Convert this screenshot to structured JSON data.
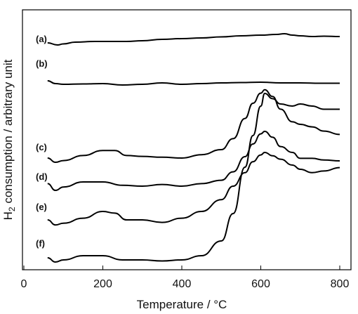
{
  "chart_data": {
    "type": "line",
    "xlabel": "Temperature / °C",
    "ylabel_main": "H",
    "ylabel_sub": "2",
    "ylabel_rest": " consumption / arbitrary unit",
    "xlim": [
      0,
      800
    ],
    "xticks": [
      {
        "value": 0,
        "label": "0"
      },
      {
        "value": 200,
        "label": "200"
      },
      {
        "value": 400,
        "label": "400"
      },
      {
        "value": 600,
        "label": "600"
      },
      {
        "value": 800,
        "label": "800"
      }
    ],
    "y_units": "arbitrary, curves vertically offset",
    "grid": false,
    "series": [
      {
        "name": "(a)",
        "x": [
          60,
          85,
          100,
          130,
          180,
          260,
          300,
          350,
          400,
          450,
          500,
          550,
          600,
          640,
          660,
          680,
          700,
          730,
          760,
          800
        ],
        "y": [
          18,
          12,
          15,
          20,
          22,
          22,
          24,
          28,
          30,
          32,
          35,
          38,
          40,
          42,
          44,
          40,
          38,
          36,
          37,
          36
        ]
      },
      {
        "name": "(b)",
        "x": [
          60,
          80,
          100,
          150,
          200,
          250,
          300,
          350,
          400,
          450,
          500,
          550,
          600,
          650,
          700,
          750,
          800
        ],
        "y": [
          20,
          12,
          10,
          11,
          12,
          8,
          10,
          14,
          10,
          12,
          14,
          15,
          16,
          14,
          14,
          13,
          13
        ]
      },
      {
        "name": "(c)",
        "x": [
          60,
          80,
          100,
          150,
          200,
          230,
          260,
          300,
          350,
          400,
          450,
          500,
          530,
          560,
          580,
          600,
          610,
          630,
          650,
          680,
          700,
          730,
          760,
          800
        ],
        "y": [
          5,
          0,
          2,
          8,
          14,
          14,
          8,
          7,
          6,
          5,
          9,
          15,
          28,
          52,
          70,
          82,
          86,
          78,
          63,
          48,
          45,
          42,
          37,
          33
        ]
      },
      {
        "name": "(d)",
        "x": [
          60,
          80,
          100,
          150,
          200,
          250,
          300,
          350,
          400,
          450,
          500,
          530,
          560,
          580,
          600,
          610,
          630,
          650,
          680,
          700,
          730,
          760,
          800
        ],
        "y": [
          8,
          0,
          4,
          10,
          10,
          6,
          5,
          7,
          5,
          8,
          12,
          22,
          40,
          55,
          67,
          70,
          63,
          52,
          45,
          38,
          38,
          36,
          35
        ]
      },
      {
        "name": "(e)",
        "x": [
          60,
          80,
          100,
          150,
          200,
          230,
          260,
          300,
          350,
          400,
          450,
          500,
          530,
          560,
          580,
          600,
          610,
          630,
          650,
          680,
          700,
          730,
          760,
          800
        ],
        "y": [
          10,
          4,
          6,
          12,
          20,
          18,
          10,
          10,
          7,
          12,
          20,
          34,
          50,
          66,
          79,
          87,
          90,
          86,
          82,
          75,
          70,
          66,
          68,
          72
        ]
      },
      {
        "name": "(f)",
        "x": [
          60,
          80,
          100,
          150,
          200,
          250,
          300,
          350,
          400,
          450,
          500,
          530,
          560,
          580,
          600,
          610,
          630,
          650,
          680,
          700,
          730,
          760,
          800
        ],
        "y": [
          4,
          0,
          2,
          6,
          6,
          2,
          2,
          1,
          2,
          6,
          20,
          46,
          90,
          120,
          148,
          160,
          155,
          150,
          148,
          150,
          148,
          145,
          145
        ]
      }
    ]
  }
}
